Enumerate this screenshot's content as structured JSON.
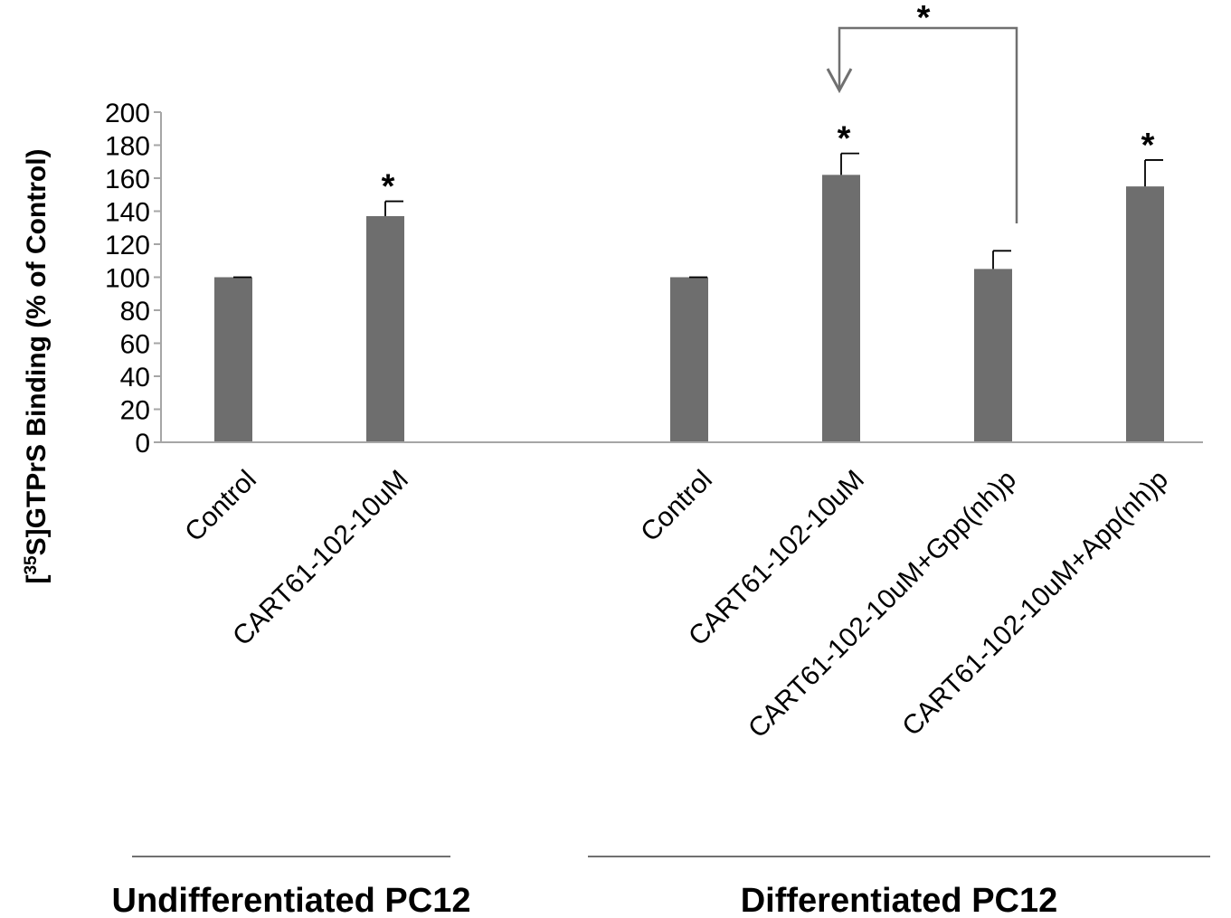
{
  "chart_data": {
    "type": "bar",
    "title": "",
    "xlabel": "",
    "ylabel": {
      "prefix": "[",
      "superscript": "35",
      "main": "S]GTPrS Binding (% of Control)"
    },
    "ylim": [
      0,
      200
    ],
    "y_ticks": [
      0,
      20,
      40,
      60,
      80,
      100,
      120,
      140,
      160,
      180,
      200
    ],
    "grid": false,
    "legend": "none",
    "bar_color": "#6e6e6e",
    "axis_color": "#a6a6a6",
    "categories": [
      {
        "label": "Control",
        "value": 100,
        "error": 0,
        "star": "",
        "slot": 0
      },
      {
        "label": "CART61-102-10uM",
        "value": 137,
        "error": 9,
        "star": "*",
        "slot": 1
      },
      {
        "label": "Control",
        "value": 100,
        "error": 0,
        "star": "",
        "slot": 3
      },
      {
        "label": "CART61-102-10uM",
        "value": 162,
        "error": 13,
        "star": "*",
        "slot": 4
      },
      {
        "label": "CART61-102-10uM+Gpp(nh)p",
        "value": 105,
        "error": 11,
        "star": "",
        "slot": 5
      },
      {
        "label": "CART61-102-10uM+App(nh)p",
        "value": 155,
        "error": 16,
        "star": "*",
        "slot": 6
      }
    ],
    "groups": [
      {
        "label": "Undifferentiated  PC12",
        "slots": [
          0,
          1
        ]
      },
      {
        "label": "Differentiated  PC12",
        "slots": [
          3,
          6
        ]
      }
    ],
    "comparison": {
      "from_slot": 5,
      "to_slot": 4,
      "star": "*"
    }
  }
}
